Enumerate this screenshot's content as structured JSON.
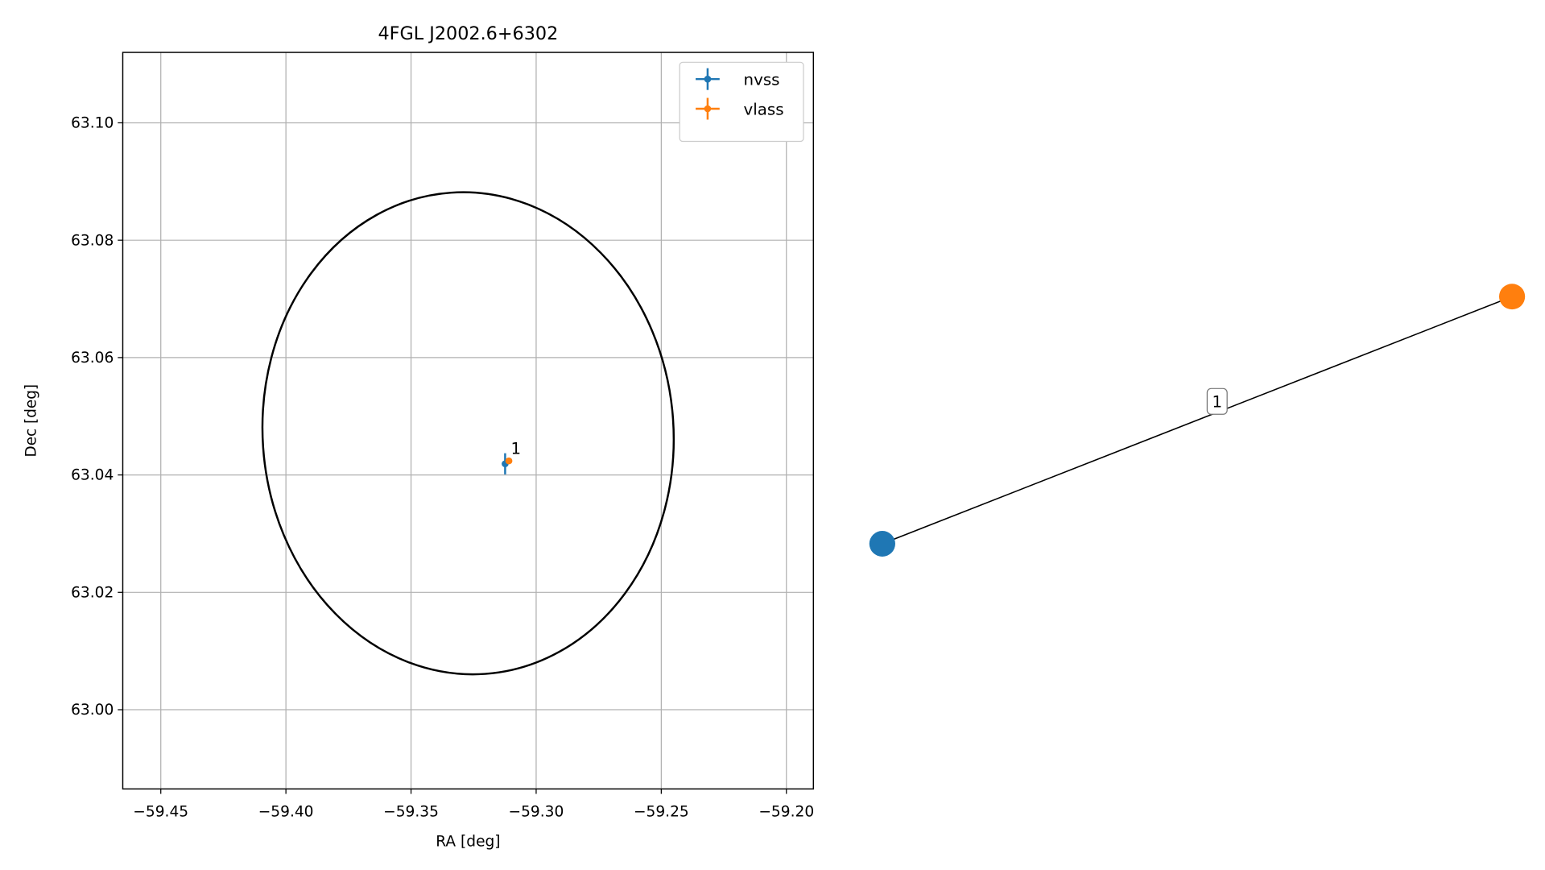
{
  "chart_data": [
    {
      "type": "scatter",
      "title": "4FGL J2002.6+6302",
      "xlabel": "RA [deg]",
      "ylabel": "Dec [deg]",
      "xlim": [
        -59.4652,
        -59.1892
      ],
      "ylim": [
        62.9865,
        63.112
      ],
      "xticks": [
        {
          "value": -59.45,
          "label": "−59.45"
        },
        {
          "value": -59.4,
          "label": "−59.40"
        },
        {
          "value": -59.35,
          "label": "−59.35"
        },
        {
          "value": -59.3,
          "label": "−59.30"
        },
        {
          "value": -59.25,
          "label": "−59.25"
        },
        {
          "value": -59.2,
          "label": "−59.20"
        }
      ],
      "yticks": [
        {
          "value": 63.0,
          "label": "63.00"
        },
        63.02,
        63.04,
        63.06,
        63.08,
        {
          "value": 63.1,
          "label": "63.10"
        }
      ],
      "grid": true,
      "legend": "upper right",
      "series": [
        {
          "name": "nvss",
          "color": "#1f77b4",
          "x": [
            -59.3124
          ],
          "values": [
            63.0419
          ],
          "xerr": [
            0.0005
          ],
          "yerr": [
            0.0018
          ]
        },
        {
          "name": "vlass",
          "color": "#ff7f0e",
          "x": [
            -59.3109
          ],
          "values": [
            63.0424
          ],
          "xerr": [
            0.0003
          ],
          "yerr": [
            0.0002
          ]
        }
      ],
      "annotations": [
        {
          "text": "1",
          "x": -59.3109,
          "y": 63.0424
        }
      ],
      "ellipse": {
        "x": -59.3272,
        "y": 63.0471,
        "rx": 0.0821,
        "ry": 0.0411,
        "angle": -4,
        "color": "#000000"
      }
    },
    {
      "type": "network",
      "nodes": [
        {
          "color": "#1f77b4"
        },
        {
          "color": "#ff7f0e"
        }
      ],
      "edges": [
        {
          "source": 0,
          "target": 1,
          "label": "1"
        }
      ]
    }
  ]
}
